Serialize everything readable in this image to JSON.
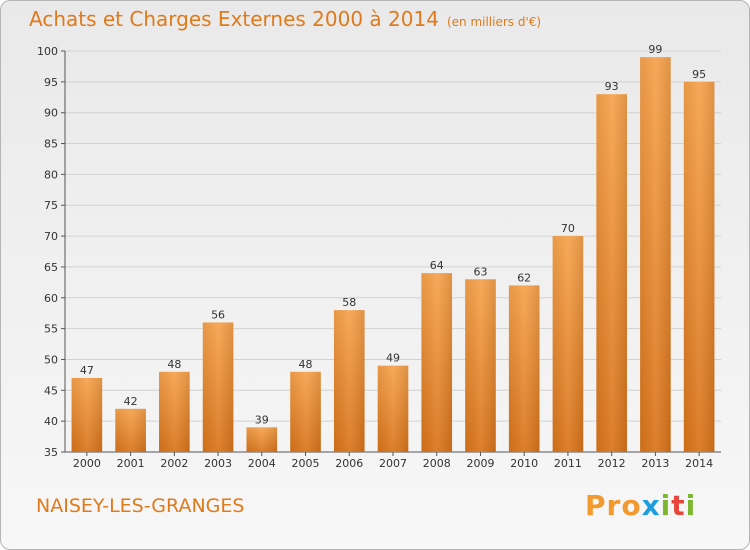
{
  "header": {
    "title": "Achats et Charges Externes 2000 à 2014",
    "subtitle": "(en milliers d'€)"
  },
  "footer": {
    "place": "NAISEY-LES-GRANGES",
    "logo_letters": [
      "P",
      "r",
      "o",
      "x",
      "i",
      "t",
      "i"
    ]
  },
  "colors": {
    "accent": "#e07a1a",
    "bar_top": "#f6a24c",
    "bar_bottom": "#d9741a",
    "logo": [
      "#f29a2e",
      "#f29a2e",
      "#f29a2e",
      "#1f9de0",
      "#7cb82f",
      "#e8463a",
      "#7cb82f"
    ]
  },
  "chart_data": {
    "type": "bar",
    "categories": [
      "2000",
      "2001",
      "2002",
      "2003",
      "2004",
      "2005",
      "2006",
      "2007",
      "2008",
      "2009",
      "2010",
      "2011",
      "2012",
      "2013",
      "2014"
    ],
    "values": [
      47,
      42,
      48,
      56,
      39,
      48,
      58,
      49,
      64,
      63,
      62,
      70,
      93,
      99,
      95
    ],
    "title": "Achats et Charges Externes 2000 à 2014",
    "subtitle": "(en milliers d'€)",
    "xlabel": "",
    "ylabel": "",
    "ylim": [
      35,
      100
    ],
    "yticks": [
      35,
      40,
      45,
      50,
      55,
      60,
      65,
      70,
      75,
      80,
      85,
      90,
      95,
      100
    ],
    "grid": true,
    "data_labels": true
  }
}
